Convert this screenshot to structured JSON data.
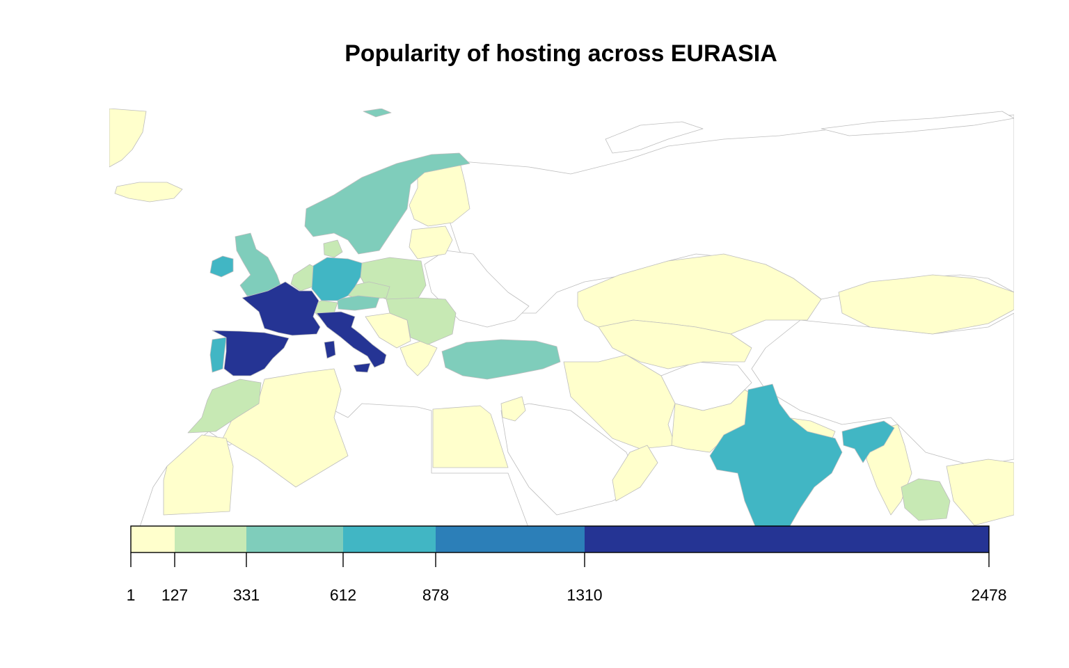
{
  "title": "Popularity of hosting across EURASIA",
  "legend": {
    "breaks": [
      1,
      127,
      331,
      612,
      878,
      1310,
      2478
    ],
    "labels": [
      "1",
      "127",
      "331",
      "612",
      "878",
      "1310",
      "2478"
    ],
    "colors": [
      "#ffffcc",
      "#c7e9b4",
      "#7fcdbb",
      "#41b6c4",
      "#2c7fb8",
      "#253494"
    ]
  },
  "chart_data": {
    "type": "choropleth",
    "title": "Popularity of hosting across EURASIA",
    "bins": [
      [
        1,
        127
      ],
      [
        127,
        331
      ],
      [
        331,
        612
      ],
      [
        612,
        878
      ],
      [
        878,
        1310
      ],
      [
        1310,
        2478
      ]
    ],
    "regions": [
      {
        "name": "France",
        "class": 5
      },
      {
        "name": "Spain",
        "class": 5
      },
      {
        "name": "Italy",
        "class": 5
      },
      {
        "name": "Germany",
        "class": 3
      },
      {
        "name": "Ireland",
        "class": 3
      },
      {
        "name": "Portugal",
        "class": 3
      },
      {
        "name": "India",
        "class": 3
      },
      {
        "name": "Bangladesh",
        "class": 3
      },
      {
        "name": "United Kingdom",
        "class": 2
      },
      {
        "name": "Norway",
        "class": 2
      },
      {
        "name": "Sweden",
        "class": 2
      },
      {
        "name": "Turkey",
        "class": 2
      },
      {
        "name": "Austria",
        "class": 2
      },
      {
        "name": "Poland",
        "class": 1
      },
      {
        "name": "Denmark",
        "class": 1
      },
      {
        "name": "Netherlands",
        "class": 1
      },
      {
        "name": "Switzerland",
        "class": 1
      },
      {
        "name": "Czech Republic",
        "class": 1
      },
      {
        "name": "Romania",
        "class": 1
      },
      {
        "name": "Bulgaria",
        "class": 1
      },
      {
        "name": "Morocco",
        "class": 1
      },
      {
        "name": "Thailand",
        "class": 1
      },
      {
        "name": "Finland",
        "class": 0
      },
      {
        "name": "Russia",
        "class": 0
      },
      {
        "name": "Kazakhstan",
        "class": 0
      },
      {
        "name": "Mongolia",
        "class": 0
      },
      {
        "name": "China",
        "class": 0
      },
      {
        "name": "Iran",
        "class": 0
      },
      {
        "name": "Pakistan",
        "class": 0
      },
      {
        "name": "Egypt",
        "class": 0
      },
      {
        "name": "Algeria",
        "class": 0
      },
      {
        "name": "Iceland",
        "class": 0
      },
      {
        "name": "Greenland",
        "class": 0
      },
      {
        "name": "Myanmar",
        "class": 0
      },
      {
        "name": "Greece",
        "class": 0
      },
      {
        "name": "Oman",
        "class": 0
      }
    ]
  }
}
